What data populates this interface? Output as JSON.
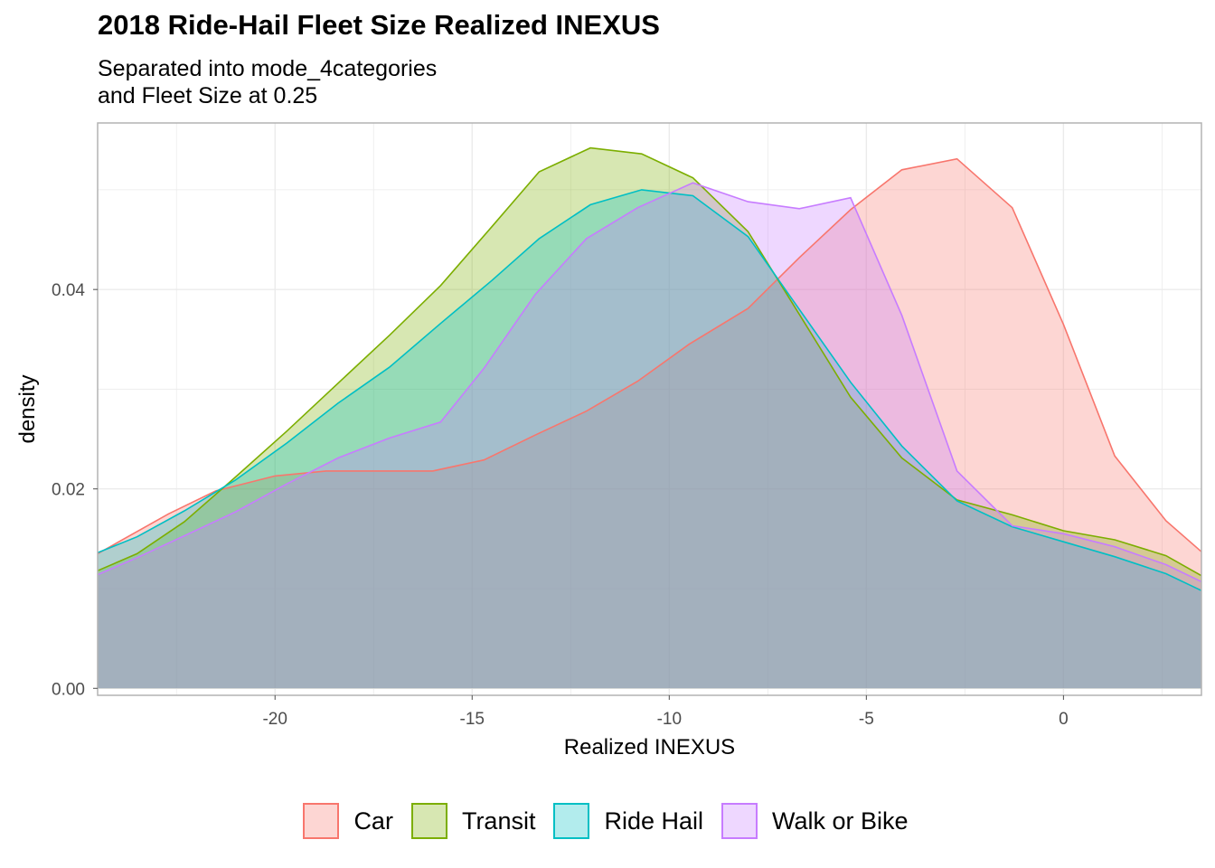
{
  "chart_data": {
    "type": "area",
    "title": "2018 Ride-Hail Fleet Size Realized INEXUS",
    "subtitle_lines": [
      "Separated into mode_4categories",
      "and Fleet Size at 0.25"
    ],
    "xlabel": "Realized INEXUS",
    "ylabel": "density",
    "xlim": [
      -24.5,
      3.5
    ],
    "ylim": [
      -0.0007,
      0.0567
    ],
    "x_ticks": [
      -20,
      -15,
      -10,
      -5,
      0
    ],
    "x_tick_labels": [
      "-20",
      "-15",
      "-10",
      "-5",
      "0"
    ],
    "y_ticks": [
      0.0,
      0.02,
      0.04
    ],
    "y_tick_labels": [
      "0.00",
      "0.02",
      "0.04"
    ],
    "grid": true,
    "legend_position": "bottom",
    "fill_opacity": 0.3,
    "series": [
      {
        "name": "Car",
        "color": "#F8766D",
        "x": [
          -24.5,
          -22.7,
          -21.5,
          -20.0,
          -18.7,
          -17.3,
          -16.0,
          -14.7,
          -13.4,
          -12.1,
          -10.8,
          -9.5,
          -8.0,
          -6.7,
          -5.4,
          -4.1,
          -2.7,
          -1.3,
          0.0,
          1.3,
          2.6,
          3.5
        ],
        "y": [
          0.0135,
          0.0175,
          0.0198,
          0.0213,
          0.0218,
          0.0218,
          0.0218,
          0.0229,
          0.0254,
          0.0278,
          0.0308,
          0.0345,
          0.0381,
          0.0432,
          0.048,
          0.052,
          0.0531,
          0.0482,
          0.0365,
          0.0233,
          0.0168,
          0.0137
        ]
      },
      {
        "name": "Transit",
        "color": "#7CAE00",
        "x": [
          -24.5,
          -23.5,
          -22.3,
          -21.0,
          -19.7,
          -18.4,
          -17.1,
          -15.8,
          -14.5,
          -13.3,
          -12.0,
          -10.7,
          -9.4,
          -8.0,
          -6.7,
          -5.4,
          -4.1,
          -2.7,
          -1.3,
          0.0,
          1.3,
          2.6,
          3.5
        ],
        "y": [
          0.0118,
          0.0135,
          0.0167,
          0.0212,
          0.0258,
          0.0306,
          0.0354,
          0.0404,
          0.0463,
          0.0518,
          0.0542,
          0.0536,
          0.0512,
          0.0458,
          0.0375,
          0.0292,
          0.0231,
          0.0189,
          0.0174,
          0.0158,
          0.0149,
          0.0133,
          0.0113
        ]
      },
      {
        "name": "Ride Hail",
        "color": "#00BFC4",
        "x": [
          -24.5,
          -23.5,
          -22.3,
          -21.0,
          -19.7,
          -18.4,
          -17.1,
          -15.8,
          -14.5,
          -13.3,
          -12.0,
          -10.7,
          -9.4,
          -8.0,
          -6.7,
          -5.4,
          -4.1,
          -2.7,
          -1.3,
          0.0,
          1.3,
          2.6,
          3.5
        ],
        "y": [
          0.0136,
          0.0152,
          0.0178,
          0.0209,
          0.0246,
          0.0286,
          0.0322,
          0.0366,
          0.0409,
          0.0451,
          0.0485,
          0.05,
          0.0494,
          0.0453,
          0.038,
          0.0307,
          0.0243,
          0.0188,
          0.0162,
          0.0147,
          0.0132,
          0.0115,
          0.0098
        ]
      },
      {
        "name": "Walk or Bike",
        "color": "#C77CFF",
        "x": [
          -24.5,
          -23.5,
          -22.3,
          -21.0,
          -19.7,
          -18.4,
          -17.1,
          -15.8,
          -14.7,
          -13.4,
          -12.1,
          -10.8,
          -9.4,
          -8.0,
          -6.7,
          -5.4,
          -4.1,
          -2.7,
          -1.3,
          0.0,
          1.3,
          2.6,
          3.5
        ],
        "y": [
          0.0114,
          0.0131,
          0.0153,
          0.0177,
          0.0205,
          0.0231,
          0.0251,
          0.0267,
          0.0321,
          0.0395,
          0.0451,
          0.0482,
          0.0507,
          0.0488,
          0.0481,
          0.0492,
          0.0374,
          0.0218,
          0.0163,
          0.0155,
          0.0142,
          0.0124,
          0.0107
        ]
      }
    ]
  }
}
